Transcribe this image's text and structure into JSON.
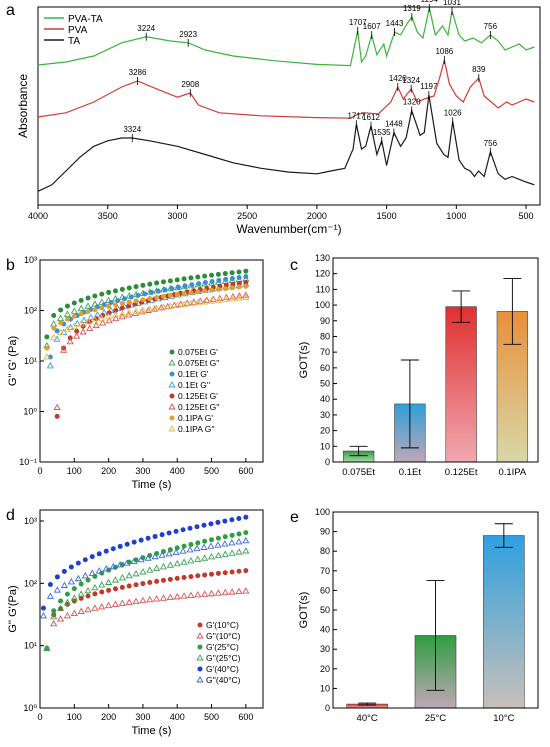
{
  "panels": {
    "a": {
      "letter": "a",
      "chart_data": {
        "type": "line",
        "xlabel": "Wavenumber(cm⁻¹)",
        "ylabel": "Absorbance",
        "xlim": [
          4000,
          400
        ],
        "xticks": [
          4000,
          3500,
          3000,
          2500,
          2000,
          1500,
          1000,
          500
        ],
        "legend_position": "top-left",
        "series": [
          {
            "name": "PVA-TA",
            "color": "#3cb43c",
            "points": [
              [
                4000,
                0.05
              ],
              [
                3800,
                0.1
              ],
              [
                3600,
                0.2
              ],
              [
                3400,
                0.42
              ],
              [
                3224,
                0.52
              ],
              [
                3050,
                0.45
              ],
              [
                2923,
                0.42
              ],
              [
                2800,
                0.3
              ],
              [
                2600,
                0.2
              ],
              [
                2300,
                0.12
              ],
              [
                2000,
                0.06
              ],
              [
                1760,
                0.04
              ],
              [
                1707,
                0.62
              ],
              [
                1680,
                0.1
              ],
              [
                1650,
                0.2
              ],
              [
                1607,
                0.55
              ],
              [
                1570,
                0.22
              ],
              [
                1520,
                0.4
              ],
              [
                1500,
                0.2
              ],
              [
                1443,
                0.6
              ],
              [
                1400,
                0.55
              ],
              [
                1350,
                0.75
              ],
              [
                1319,
                0.85
              ],
              [
                1280,
                0.6
              ],
              [
                1240,
                0.5
              ],
              [
                1194,
                1.0
              ],
              [
                1150,
                0.55
              ],
              [
                1100,
                0.7
              ],
              [
                1060,
                0.55
              ],
              [
                1031,
                0.95
              ],
              [
                980,
                0.55
              ],
              [
                940,
                0.45
              ],
              [
                880,
                0.5
              ],
              [
                820,
                0.42
              ],
              [
                756,
                0.55
              ],
              [
                700,
                0.45
              ],
              [
                650,
                0.3
              ],
              [
                600,
                0.35
              ],
              [
                550,
                0.4
              ],
              [
                500,
                0.3
              ],
              [
                440,
                0.35
              ]
            ]
          },
          {
            "name": "PVA",
            "color": "#d23c32",
            "points": [
              [
                4000,
                0.05
              ],
              [
                3800,
                0.12
              ],
              [
                3600,
                0.3
              ],
              [
                3400,
                0.55
              ],
              [
                3286,
                0.65
              ],
              [
                3150,
                0.52
              ],
              [
                3000,
                0.38
              ],
              [
                2908,
                0.45
              ],
              [
                2850,
                0.25
              ],
              [
                2700,
                0.12
              ],
              [
                2400,
                0.07
              ],
              [
                2000,
                0.04
              ],
              [
                1760,
                0.03
              ],
              [
                1700,
                0.1
              ],
              [
                1650,
                0.12
              ],
              [
                1560,
                0.1
              ],
              [
                1470,
                0.3
              ],
              [
                1420,
                0.55
              ],
              [
                1380,
                0.35
              ],
              [
                1324,
                0.52
              ],
              [
                1280,
                0.3
              ],
              [
                1230,
                0.35
              ],
              [
                1160,
                0.4
              ],
              [
                1120,
                0.7
              ],
              [
                1086,
                1.0
              ],
              [
                1050,
                0.6
              ],
              [
                1000,
                0.4
              ],
              [
                950,
                0.3
              ],
              [
                900,
                0.55
              ],
              [
                839,
                0.7
              ],
              [
                800,
                0.4
              ],
              [
                700,
                0.2
              ],
              [
                640,
                0.3
              ],
              [
                600,
                0.25
              ],
              [
                500,
                0.35
              ],
              [
                440,
                0.3
              ]
            ]
          },
          {
            "name": "TA",
            "color": "#1a1a1a",
            "points": [
              [
                4000,
                0.03
              ],
              [
                3900,
                0.15
              ],
              [
                3800,
                0.4
              ],
              [
                3700,
                0.65
              ],
              [
                3600,
                0.85
              ],
              [
                3500,
                0.95
              ],
              [
                3400,
                1.0
              ],
              [
                3324,
                1.0
              ],
              [
                3200,
                0.95
              ],
              [
                3000,
                0.85
              ],
              [
                2800,
                0.7
              ],
              [
                2600,
                0.55
              ],
              [
                2400,
                0.45
              ],
              [
                2200,
                0.38
              ],
              [
                2000,
                0.35
              ],
              [
                1900,
                0.4
              ],
              [
                1800,
                0.45
              ],
              [
                1740,
                0.8
              ],
              [
                1717,
                1.25
              ],
              [
                1680,
                0.8
              ],
              [
                1650,
                0.85
              ],
              [
                1612,
                1.22
              ],
              [
                1570,
                0.7
              ],
              [
                1535,
                0.95
              ],
              [
                1500,
                0.5
              ],
              [
                1448,
                1.1
              ],
              [
                1400,
                0.85
              ],
              [
                1360,
                1.0
              ],
              [
                1320,
                1.5
              ],
              [
                1260,
                1.05
              ],
              [
                1230,
                1.1
              ],
              [
                1197,
                1.78
              ],
              [
                1140,
                0.9
              ],
              [
                1090,
                0.7
              ],
              [
                1060,
                0.65
              ],
              [
                1026,
                1.3
              ],
              [
                980,
                0.6
              ],
              [
                940,
                0.45
              ],
              [
                900,
                0.4
              ],
              [
                870,
                0.3
              ],
              [
                840,
                0.4
              ],
              [
                800,
                0.3
              ],
              [
                756,
                0.75
              ],
              [
                700,
                0.35
              ],
              [
                650,
                0.25
              ],
              [
                600,
                0.3
              ],
              [
                550,
                0.25
              ],
              [
                500,
                0.2
              ],
              [
                440,
                0.15
              ]
            ]
          }
        ],
        "peak_labels": [
          {
            "series": 0,
            "x": 3224,
            "y": 0.52,
            "label": "3224"
          },
          {
            "series": 0,
            "x": 2923,
            "y": 0.42,
            "label": "2923"
          },
          {
            "series": 0,
            "x": 1707,
            "y": 0.62,
            "label": "1707"
          },
          {
            "series": 0,
            "x": 1607,
            "y": 0.55,
            "label": "1607"
          },
          {
            "series": 0,
            "x": 1443,
            "y": 0.6,
            "label": "1443"
          },
          {
            "series": 0,
            "x": 1319,
            "y": 0.85,
            "label": "1319"
          },
          {
            "series": 0,
            "x": 1194,
            "y": 1.0,
            "label": "1194"
          },
          {
            "series": 0,
            "x": 1031,
            "y": 0.95,
            "label": "1031"
          },
          {
            "series": 0,
            "x": 756,
            "y": 0.55,
            "label": "756"
          },
          {
            "series": 1,
            "x": 3286,
            "y": 0.65,
            "label": "3286"
          },
          {
            "series": 1,
            "x": 2908,
            "y": 0.45,
            "label": "2908"
          },
          {
            "series": 1,
            "x": 1420,
            "y": 0.55,
            "label": "1420"
          },
          {
            "series": 1,
            "x": 1324,
            "y": 0.52,
            "label": "1324"
          },
          {
            "series": 1,
            "x": 1086,
            "y": 1.0,
            "label": "1086"
          },
          {
            "series": 1,
            "x": 839,
            "y": 0.7,
            "label": "839"
          },
          {
            "series": 2,
            "x": 3324,
            "y": 1.0,
            "label": "3324"
          },
          {
            "series": 2,
            "x": 1717,
            "y": 1.25,
            "label": "1717"
          },
          {
            "series": 2,
            "x": 1612,
            "y": 1.22,
            "label": "1612"
          },
          {
            "series": 2,
            "x": 1535,
            "y": 0.95,
            "label": "1535"
          },
          {
            "series": 2,
            "x": 1448,
            "y": 1.1,
            "label": "1448"
          },
          {
            "series": 2,
            "x": 1320,
            "y": 1.5,
            "label": "1320"
          },
          {
            "series": 2,
            "x": 1197,
            "y": 1.78,
            "label": "1197"
          },
          {
            "series": 2,
            "x": 1026,
            "y": 1.3,
            "label": "1026"
          },
          {
            "series": 2,
            "x": 756,
            "y": 0.75,
            "label": "756"
          }
        ]
      }
    },
    "b": {
      "letter": "b",
      "chart_data": {
        "type": "scatter",
        "xlabel": "Time (s)",
        "ylabel": "G'' G' (Pa)",
        "xlim": [
          0,
          650
        ],
        "ylim": [
          0.1,
          1000
        ],
        "yscale": "log",
        "xticks": [
          0,
          100,
          200,
          300,
          400,
          500,
          600
        ],
        "yticks": [
          0.1,
          1,
          10,
          100,
          1000
        ],
        "ytick_labels": [
          "10⁻¹",
          "10⁰",
          "10¹",
          "10²",
          "10³"
        ],
        "legend_position": "center-right",
        "series": [
          {
            "name": "0.075Et G'",
            "color": "#2e8b3a",
            "marker": "filled",
            "t0": 20,
            "y0": 30,
            "y1": 600,
            "grow": 3
          },
          {
            "name": "0.075Et G''",
            "color": "#3aa555",
            "marker": "open",
            "t0": 20,
            "y0": 20,
            "y1": 420,
            "grow": 3
          },
          {
            "name": "0.1Et G'",
            "color": "#3b8fd4",
            "marker": "filled",
            "t0": 30,
            "y0": 12,
            "y1": 470,
            "grow": 3
          },
          {
            "name": "0.1Et G''",
            "color": "#3aa0e0",
            "marker": "open",
            "t0": 30,
            "y0": 8,
            "y1": 330,
            "grow": 3
          },
          {
            "name": "0.125Et G'",
            "color": "#c0392b",
            "marker": "filled",
            "t0": 50,
            "y0": 0.8,
            "y1": 360,
            "grow": 5
          },
          {
            "name": "0.125Et G''",
            "color": "#d9534f",
            "marker": "open",
            "t0": 50,
            "y0": 1.2,
            "y1": 200,
            "grow": 5
          },
          {
            "name": "0.1IPA G'",
            "color": "#e0a030",
            "marker": "filled",
            "t0": 20,
            "y0": 18,
            "y1": 300,
            "grow": 3
          },
          {
            "name": "0.1IPA G''",
            "color": "#e6b84a",
            "marker": "open",
            "t0": 20,
            "y0": 12,
            "y1": 180,
            "grow": 3
          }
        ]
      }
    },
    "c": {
      "letter": "c",
      "chart_data": {
        "type": "bar",
        "ylabel": "GOT(s)",
        "ylim": [
          0,
          130
        ],
        "yticks": [
          0,
          10,
          20,
          30,
          40,
          50,
          60,
          70,
          80,
          90,
          100,
          110,
          120,
          130
        ],
        "categories": [
          "0.075Et",
          "0.1Et",
          "0.125Et",
          "0.1IPA"
        ],
        "values": [
          7,
          37,
          99,
          96
        ],
        "errors": [
          3,
          28,
          10,
          21
        ],
        "colors": [
          [
            "#2e9e3e",
            "#a8d8a8"
          ],
          [
            "#2f9fd8",
            "#c0a8b8"
          ],
          [
            "#e03030",
            "#f0a8b0"
          ],
          [
            "#e8903a",
            "#d8d8a8"
          ]
        ]
      }
    },
    "d": {
      "letter": "d",
      "chart_data": {
        "type": "scatter",
        "xlabel": "Time (s)",
        "ylabel": "G'' G'(Pa)",
        "xlim": [
          0,
          650
        ],
        "ylim": [
          1,
          1500
        ],
        "yscale": "log",
        "xticks": [
          0,
          100,
          200,
          300,
          400,
          500,
          600
        ],
        "yticks": [
          1,
          10,
          100,
          1000
        ],
        "ytick_labels": [
          "10⁰",
          "10¹",
          "10²",
          "10³"
        ],
        "legend_position": "bottom-right",
        "series": [
          {
            "name": "G'(10°C)",
            "color": "#c0392b",
            "marker": "filled",
            "t0": 20,
            "y0": 9,
            "y1": 160,
            "grow": 4
          },
          {
            "name": "G''(10°C)",
            "color": "#d9534f",
            "marker": "open",
            "t0": 20,
            "y0": 9,
            "y1": 75,
            "grow": 4
          },
          {
            "name": "G'(25°C)",
            "color": "#2e9e3e",
            "marker": "filled",
            "t0": 20,
            "y0": 9,
            "y1": 650,
            "grow": 3
          },
          {
            "name": "G''(25°C)",
            "color": "#3aa555",
            "marker": "open",
            "t0": 20,
            "y0": 9,
            "y1": 330,
            "grow": 3
          },
          {
            "name": "G'(40°C)",
            "color": "#1f3fd0",
            "marker": "filled",
            "t0": 10,
            "y0": 40,
            "y1": 1150,
            "grow": 2.5
          },
          {
            "name": "G''(40°C)",
            "color": "#3a6ad8",
            "marker": "open",
            "t0": 10,
            "y0": 30,
            "y1": 480,
            "grow": 2.5
          }
        ]
      }
    },
    "e": {
      "letter": "e",
      "chart_data": {
        "type": "bar",
        "ylabel": "GOT(s)",
        "ylim": [
          0,
          100
        ],
        "yticks": [
          0,
          10,
          20,
          30,
          40,
          50,
          60,
          70,
          80,
          90,
          100
        ],
        "categories": [
          "40°C",
          "25°C",
          "10°C"
        ],
        "values": [
          2,
          37,
          88
        ],
        "errors": [
          0.5,
          28,
          6
        ],
        "colors": [
          [
            "#e03030",
            "#f0a8b0"
          ],
          [
            "#2e9e3e",
            "#c0a8b8"
          ],
          [
            "#2fa0e0",
            "#c8c0b8"
          ]
        ]
      }
    }
  }
}
